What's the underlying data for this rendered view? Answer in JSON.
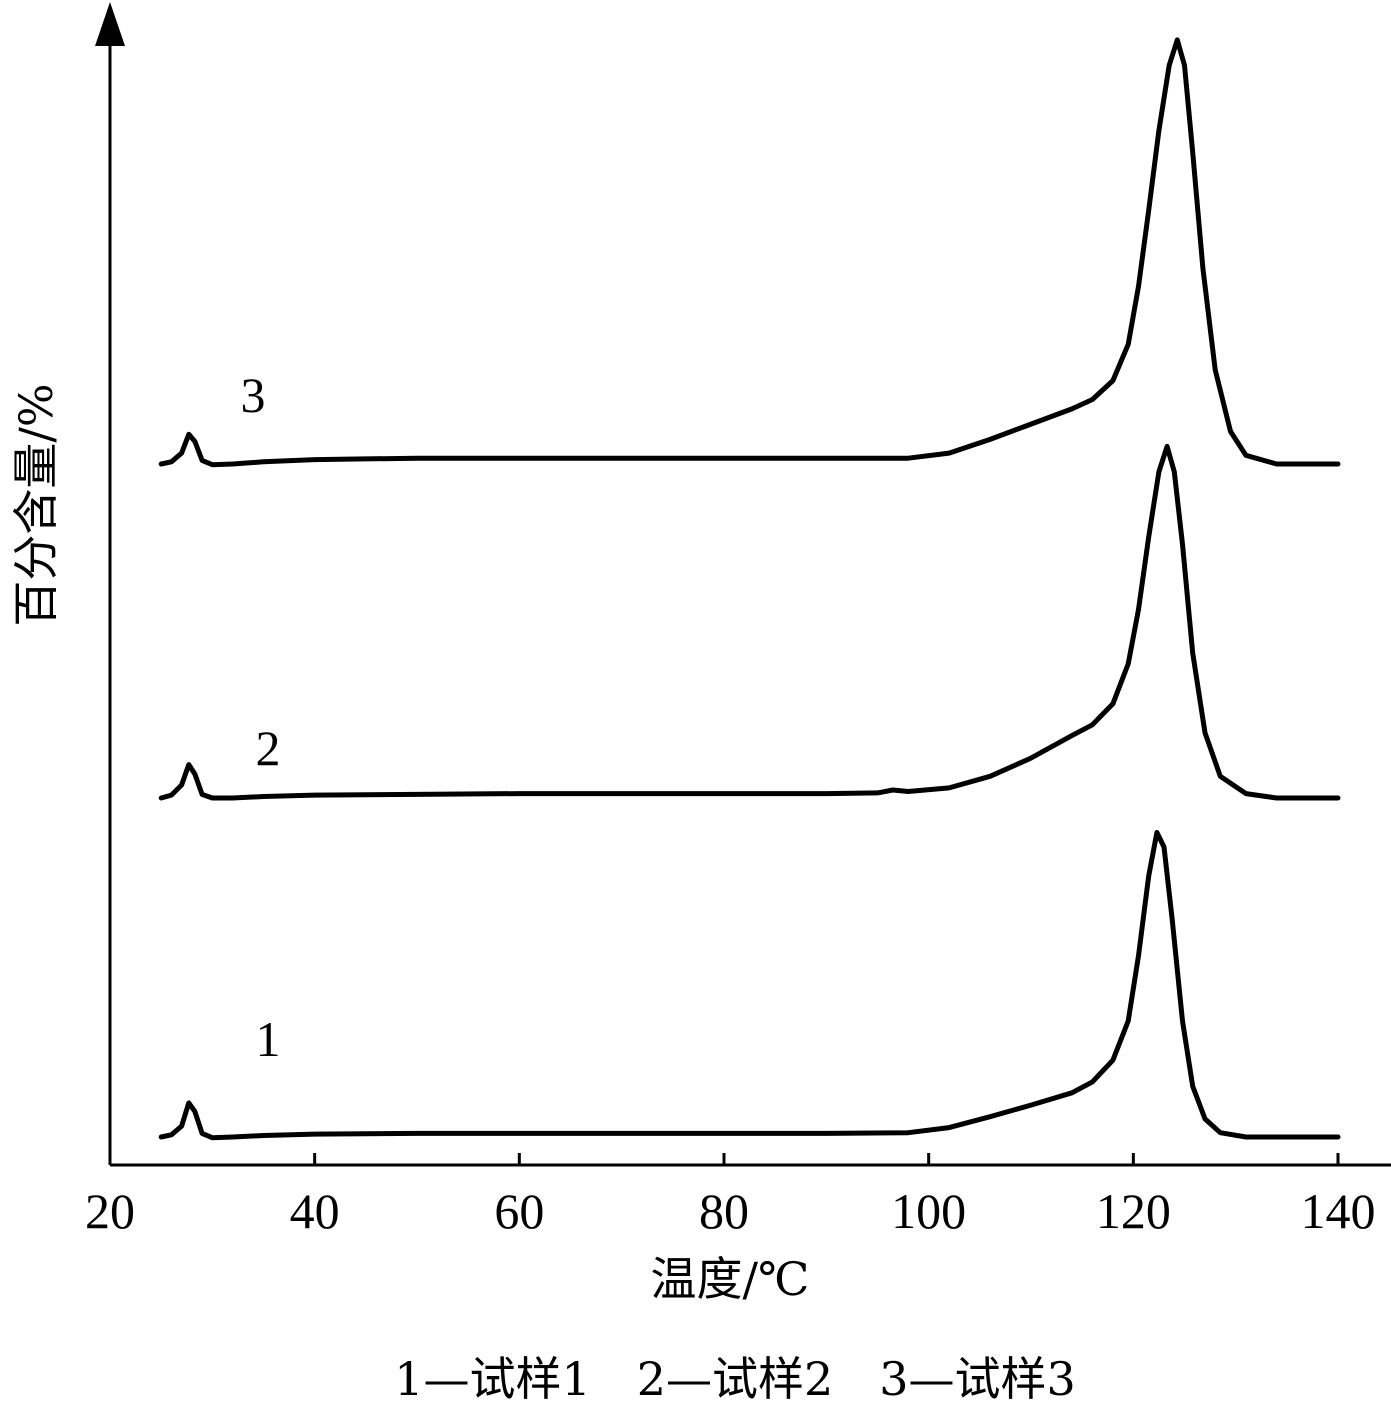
{
  "chart_data": {
    "type": "line",
    "xlabel": "温度/℃",
    "ylabel": "百分含量/%",
    "xlim": [
      20,
      140
    ],
    "x_ticks": [
      "20",
      "40",
      "60",
      "80",
      "100",
      "120",
      "140"
    ],
    "y_ticks_shown": false,
    "grid": false,
    "caption": "1—试样1　2—试样2　3—试样3",
    "series": [
      {
        "name": "1",
        "x": [
          25,
          26,
          27,
          27.7,
          28.3,
          29,
          30,
          32,
          35,
          40,
          50,
          60,
          70,
          80,
          90,
          98,
          102,
          106,
          110,
          114,
          116,
          118,
          119.5,
          120.5,
          121.5,
          122.3,
          123,
          123.8,
          124.8,
          125.8,
          127,
          128.5,
          131,
          134,
          137,
          140
        ],
        "y": [
          0,
          0.3,
          1.5,
          4.7,
          3.5,
          0.5,
          -0.1,
          0,
          0.2,
          0.4,
          0.5,
          0.5,
          0.5,
          0.5,
          0.5,
          0.6,
          1.3,
          2.8,
          4.4,
          6.1,
          7.6,
          10.6,
          16,
          25,
          36,
          42,
          40,
          30,
          16,
          7,
          2.5,
          0.6,
          0,
          0,
          0,
          0
        ]
      },
      {
        "name": "2",
        "x": [
          25,
          26,
          27,
          27.7,
          28.3,
          29,
          30,
          32,
          35,
          40,
          50,
          60,
          70,
          80,
          90,
          95,
          96.5,
          98,
          102,
          106,
          110,
          114,
          116,
          118,
          119.5,
          120.5,
          121.5,
          122.5,
          123.3,
          124,
          124.8,
          125.8,
          127,
          128.5,
          131,
          134,
          137,
          140
        ],
        "y": [
          0,
          0.4,
          1.8,
          4.6,
          3.3,
          0.5,
          0,
          0,
          0.2,
          0.4,
          0.5,
          0.6,
          0.6,
          0.6,
          0.6,
          0.7,
          1.1,
          0.9,
          1.4,
          3,
          5.5,
          8.6,
          10.1,
          13,
          18.5,
          26,
          36,
          45,
          48.5,
          45,
          35,
          20,
          9,
          3,
          0.6,
          0,
          0,
          0
        ]
      },
      {
        "name": "3",
        "x": [
          25,
          26,
          27,
          27.7,
          28.3,
          29,
          30,
          32,
          35,
          40,
          50,
          60,
          70,
          80,
          90,
          98,
          102,
          106,
          110,
          114,
          116,
          118,
          119.5,
          120.5,
          121.5,
          122.5,
          123.5,
          124.3,
          125,
          125.8,
          126.8,
          128,
          129.5,
          131,
          134,
          137,
          140
        ],
        "y": [
          0,
          0.3,
          1.5,
          4.1,
          3.1,
          0.5,
          -0.1,
          0,
          0.3,
          0.6,
          0.8,
          0.8,
          0.8,
          0.8,
          0.8,
          0.8,
          1.5,
          3.4,
          5.5,
          7.6,
          8.9,
          11.5,
          16.5,
          24.5,
          35,
          46,
          55,
          58.5,
          55,
          43,
          27,
          13,
          4.5,
          1.2,
          0,
          0,
          0
        ]
      }
    ],
    "series_tags": [
      "1",
      "2",
      "3"
    ]
  }
}
